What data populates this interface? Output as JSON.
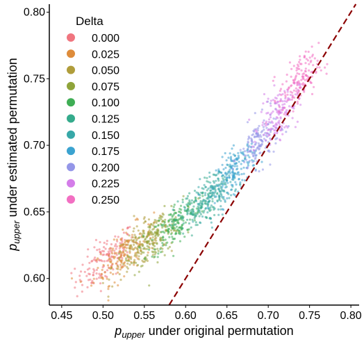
{
  "chart_data": {
    "type": "scatter",
    "xlabel_sub": "upper",
    "xlabel_italic": "p",
    "xlabel_rest": " under original permutation",
    "ylabel_italic": "p",
    "ylabel_sub": "upper",
    "ylabel_rest": " under estimated permutation",
    "xlim": [
      0.435,
      0.81
    ],
    "ylim": [
      0.58,
      0.806
    ],
    "x_ticks": [
      "0.45",
      "0.50",
      "0.55",
      "0.60",
      "0.65",
      "0.70",
      "0.75",
      "0.80"
    ],
    "y_ticks": [
      "0.60",
      "0.65",
      "0.70",
      "0.75",
      "0.80"
    ],
    "grid": false,
    "legend": {
      "title": "Delta",
      "placement": "upper-left",
      "entries": [
        {
          "label": "0.000",
          "color": "#f0757f"
        },
        {
          "label": "0.025",
          "color": "#de8c3b"
        },
        {
          "label": "0.050",
          "color": "#b09d3b"
        },
        {
          "label": "0.075",
          "color": "#8fa43a"
        },
        {
          "label": "0.100",
          "color": "#3fae55"
        },
        {
          "label": "0.125",
          "color": "#35ab8c"
        },
        {
          "label": "0.150",
          "color": "#37a8a8"
        },
        {
          "label": "0.175",
          "color": "#3ba3d0"
        },
        {
          "label": "0.200",
          "color": "#9496e8"
        },
        {
          "label": "0.225",
          "color": "#d47de9"
        },
        {
          "label": "0.250",
          "color": "#f26fc2"
        }
      ]
    },
    "series": [
      {
        "delta": "0.000",
        "x_center": 0.503,
        "y_center": 0.614,
        "x_spread": 0.018,
        "y_spread": 0.008,
        "count": 150
      },
      {
        "delta": "0.025",
        "x_center": 0.525,
        "y_center": 0.619,
        "x_spread": 0.018,
        "y_spread": 0.008,
        "count": 150
      },
      {
        "delta": "0.050",
        "x_center": 0.545,
        "y_center": 0.624,
        "x_spread": 0.017,
        "y_spread": 0.008,
        "count": 150
      },
      {
        "delta": "0.075",
        "x_center": 0.565,
        "y_center": 0.631,
        "x_spread": 0.016,
        "y_spread": 0.008,
        "count": 150
      },
      {
        "delta": "0.100",
        "x_center": 0.588,
        "y_center": 0.641,
        "x_spread": 0.015,
        "y_spread": 0.008,
        "count": 150
      },
      {
        "delta": "0.125",
        "x_center": 0.614,
        "y_center": 0.653,
        "x_spread": 0.014,
        "y_spread": 0.008,
        "count": 150
      },
      {
        "delta": "0.150",
        "x_center": 0.638,
        "y_center": 0.666,
        "x_spread": 0.013,
        "y_spread": 0.008,
        "count": 150
      },
      {
        "delta": "0.175",
        "x_center": 0.661,
        "y_center": 0.682,
        "x_spread": 0.012,
        "y_spread": 0.008,
        "count": 150
      },
      {
        "delta": "0.200",
        "x_center": 0.689,
        "y_center": 0.702,
        "x_spread": 0.012,
        "y_spread": 0.009,
        "count": 150
      },
      {
        "delta": "0.225",
        "x_center": 0.713,
        "y_center": 0.724,
        "x_spread": 0.012,
        "y_spread": 0.009,
        "count": 150
      },
      {
        "delta": "0.250",
        "x_center": 0.737,
        "y_center": 0.748,
        "x_spread": 0.012,
        "y_spread": 0.009,
        "count": 150
      }
    ],
    "reference_line": {
      "style": "dashed",
      "color": "#8b0000",
      "x": [
        0.58,
        0.806
      ],
      "y": [
        0.58,
        0.806
      ]
    }
  }
}
